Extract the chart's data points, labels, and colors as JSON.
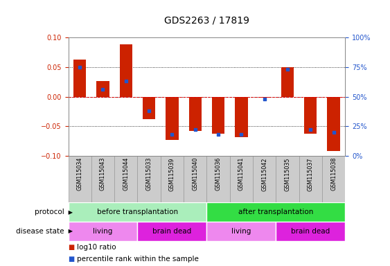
{
  "title": "GDS2263 / 17819",
  "samples": [
    "GSM115034",
    "GSM115043",
    "GSM115044",
    "GSM115033",
    "GSM115039",
    "GSM115040",
    "GSM115036",
    "GSM115041",
    "GSM115042",
    "GSM115035",
    "GSM115037",
    "GSM115038"
  ],
  "log10_ratio": [
    0.063,
    0.027,
    0.088,
    -0.038,
    -0.073,
    -0.058,
    -0.063,
    -0.068,
    -0.002,
    0.05,
    -0.062,
    -0.092
  ],
  "percentile_rank": [
    0.75,
    0.56,
    0.63,
    0.38,
    0.18,
    0.22,
    0.18,
    0.18,
    0.48,
    0.73,
    0.22,
    0.2
  ],
  "bar_color": "#cc2200",
  "dot_color": "#2255cc",
  "ylim_lo": -0.1,
  "ylim_hi": 0.1,
  "yticks": [
    -0.1,
    -0.05,
    0.0,
    0.05,
    0.1
  ],
  "right_ytick_values": [
    0,
    25,
    50,
    75,
    100
  ],
  "right_yticklabels": [
    "0%",
    "25%",
    "50%",
    "75%",
    "100%"
  ],
  "hline_color": "#dd0000",
  "protocol_before_n": 6,
  "protocol_after_n": 6,
  "protocol_before_color": "#aaeebb",
  "protocol_after_color": "#33dd44",
  "disease_sections": [
    3,
    3,
    3,
    3
  ],
  "disease_colors": [
    "#ee88ee",
    "#dd22dd",
    "#ee88ee",
    "#dd22dd"
  ],
  "disease_labels": [
    "living",
    "brain dead",
    "living",
    "brain dead"
  ],
  "legend_log10_label": "log10 ratio",
  "legend_percentile_label": "percentile rank within the sample",
  "bar_width": 0.55,
  "bg_color": "#ffffff",
  "plot_bg_color": "#ffffff",
  "spine_color": "#888888",
  "tick_label_fontsize": 7,
  "title_fontsize": 10,
  "sample_fontsize": 5.8,
  "row_fontsize": 7.5,
  "label_color": "#cccccc"
}
